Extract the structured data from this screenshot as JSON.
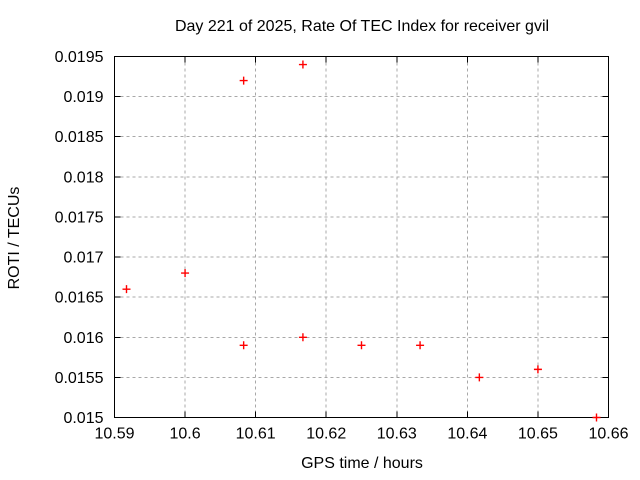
{
  "chart_data": {
    "type": "scatter",
    "title": "Day 221 of 2025, Rate Of TEC Index for receiver gvil",
    "xlabel": "GPS time / hours",
    "ylabel": "ROTI / TECUs",
    "xlim": [
      10.59,
      10.66
    ],
    "ylim": [
      0.015,
      0.0195
    ],
    "grid": "dashed",
    "legend": "none",
    "marker": "plus",
    "marker_color": "#ff0000",
    "axis_color": "#000000",
    "grid_color": "#a8a8a8",
    "x_ticks": [
      {
        "v": 10.59,
        "label": "10.59"
      },
      {
        "v": 10.6,
        "label": "10.6"
      },
      {
        "v": 10.61,
        "label": "10.61"
      },
      {
        "v": 10.62,
        "label": "10.62"
      },
      {
        "v": 10.63,
        "label": "10.63"
      },
      {
        "v": 10.64,
        "label": "10.64"
      },
      {
        "v": 10.65,
        "label": "10.65"
      },
      {
        "v": 10.66,
        "label": "10.66"
      }
    ],
    "y_ticks": [
      {
        "v": 0.015,
        "label": "0.015"
      },
      {
        "v": 0.0155,
        "label": "0.0155"
      },
      {
        "v": 0.016,
        "label": "0.016"
      },
      {
        "v": 0.0165,
        "label": "0.0165"
      },
      {
        "v": 0.017,
        "label": "0.017"
      },
      {
        "v": 0.0175,
        "label": "0.0175"
      },
      {
        "v": 0.018,
        "label": "0.018"
      },
      {
        "v": 0.0185,
        "label": "0.0185"
      },
      {
        "v": 0.019,
        "label": "0.019"
      },
      {
        "v": 0.0195,
        "label": "0.0195"
      }
    ],
    "points": [
      [
        10.5917,
        0.0166
      ],
      [
        10.6,
        0.0168
      ],
      [
        10.6083,
        0.0192
      ],
      [
        10.6083,
        0.0159
      ],
      [
        10.6167,
        0.0194
      ],
      [
        10.6167,
        0.016
      ],
      [
        10.625,
        0.0159
      ],
      [
        10.6333,
        0.0159
      ],
      [
        10.6417,
        0.0155
      ],
      [
        10.65,
        0.0156
      ],
      [
        10.6583,
        0.015
      ]
    ]
  }
}
